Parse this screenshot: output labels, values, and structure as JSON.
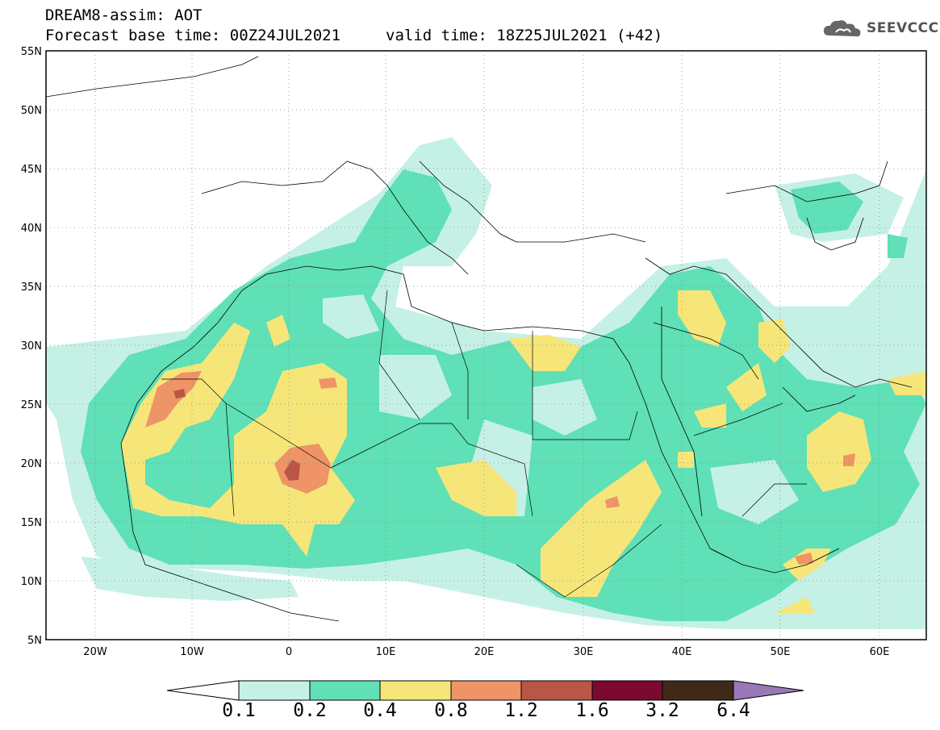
{
  "header": {
    "title": "DREAM8-assim: AOT",
    "base_time": "Forecast base time: 00Z24JUL2021",
    "valid_time": "valid time: 18Z25JUL2021 (+42)"
  },
  "logo": {
    "text": "SEEVCCC",
    "icon": "cloud-icon"
  },
  "map": {
    "lat_ticks": [
      "55N",
      "50N",
      "45N",
      "40N",
      "35N",
      "30N",
      "25N",
      "20N",
      "15N",
      "10N",
      "5N"
    ],
    "lon_ticks": [
      "20W",
      "10W",
      "0",
      "10E",
      "20E",
      "30E",
      "40E",
      "50E",
      "60E"
    ],
    "lat_range": [
      5,
      55
    ],
    "lon_range": [
      -25,
      65
    ],
    "gridlines": "dotted"
  },
  "colorbar": {
    "labels": [
      "0.1",
      "0.2",
      "0.4",
      "0.8",
      "1.2",
      "1.6",
      "3.2",
      "6.4"
    ],
    "colors": [
      "#ffffff",
      "#c5f0e6",
      "#5fe0b6",
      "#f6e67a",
      "#ee9466",
      "#b95646",
      "#7c0a2e",
      "#3f2a1a",
      "#9a78b8"
    ]
  },
  "colors": {
    "level1": "#c5f0e6",
    "level2": "#5fe0b6",
    "level3": "#f6e67a",
    "level4": "#ee9466",
    "level5": "#b95646"
  }
}
